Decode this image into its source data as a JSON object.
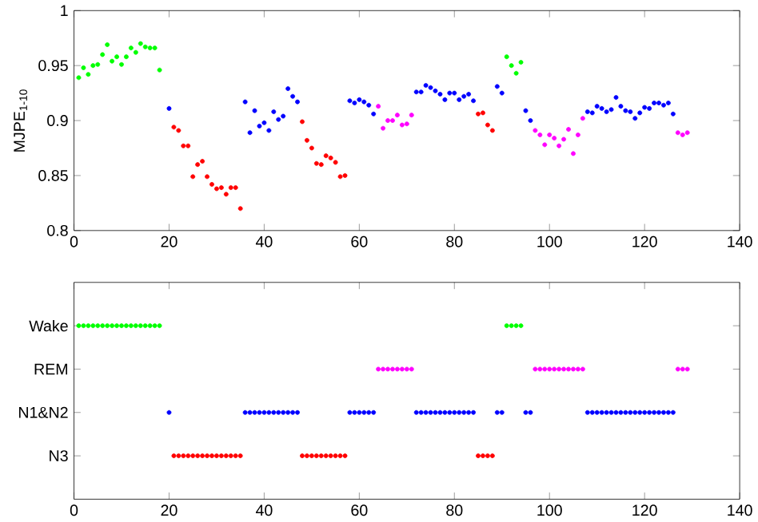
{
  "chart_data": [
    {
      "type": "scatter",
      "ylabel": "MJPE$_{1-10}$",
      "xlim": [
        0,
        140
      ],
      "xticks": [
        0,
        20,
        40,
        60,
        80,
        100,
        120,
        140
      ],
      "ylim": [
        0.8,
        1
      ],
      "yticks": [
        0.8,
        0.85,
        0.9,
        0.95,
        1
      ],
      "marker": "circle",
      "grid": false,
      "series": [
        {
          "color": "#00ff00",
          "x": [
            1,
            2,
            3,
            4,
            5,
            6,
            7,
            8,
            9,
            10,
            11,
            12,
            13,
            14,
            15,
            16,
            17,
            18,
            91,
            92,
            93,
            94
          ],
          "values": [
            0.939,
            0.948,
            0.942,
            0.95,
            0.951,
            0.96,
            0.969,
            0.954,
            0.958,
            0.951,
            0.958,
            0.966,
            0.962,
            0.97,
            0.967,
            0.966,
            0.966,
            0.946,
            0.958,
            0.95,
            0.943,
            0.953
          ]
        },
        {
          "color": "#ff00ff",
          "x": [
            64,
            65,
            66,
            67,
            68,
            69,
            70,
            71,
            97,
            98,
            99,
            100,
            101,
            102,
            103,
            104,
            105,
            106,
            107,
            127,
            128,
            129
          ],
          "values": [
            0.913,
            0.893,
            0.9,
            0.9,
            0.905,
            0.896,
            0.897,
            0.905,
            0.891,
            0.887,
            0.878,
            0.887,
            0.884,
            0.877,
            0.883,
            0.892,
            0.87,
            0.887,
            0.902,
            0.889,
            0.887,
            0.889
          ]
        },
        {
          "color": "#0000ff",
          "x": [
            20,
            36,
            37,
            38,
            39,
            40,
            41,
            42,
            43,
            44,
            45,
            46,
            47,
            58,
            59,
            60,
            61,
            62,
            63,
            72,
            73,
            74,
            75,
            76,
            77,
            78,
            79,
            80,
            81,
            82,
            83,
            84,
            89,
            90,
            95,
            96,
            108,
            109,
            110,
            111,
            112,
            113,
            114,
            115,
            116,
            117,
            118,
            119,
            120,
            121,
            122,
            123,
            124,
            125,
            126
          ],
          "values": [
            0.911,
            0.917,
            0.889,
            0.909,
            0.895,
            0.898,
            0.891,
            0.908,
            0.901,
            0.904,
            0.929,
            0.922,
            0.917,
            0.918,
            0.916,
            0.919,
            0.917,
            0.914,
            0.906,
            0.926,
            0.926,
            0.932,
            0.93,
            0.927,
            0.924,
            0.919,
            0.925,
            0.925,
            0.919,
            0.922,
            0.924,
            0.918,
            0.931,
            0.925,
            0.909,
            0.9,
            0.908,
            0.907,
            0.913,
            0.911,
            0.908,
            0.91,
            0.921,
            0.913,
            0.909,
            0.908,
            0.902,
            0.907,
            0.912,
            0.911,
            0.916,
            0.916,
            0.914,
            0.916,
            0.906
          ]
        },
        {
          "color": "#ff0000",
          "x": [
            21,
            22,
            23,
            24,
            25,
            26,
            27,
            28,
            29,
            30,
            31,
            32,
            33,
            34,
            35,
            48,
            49,
            50,
            51,
            52,
            53,
            54,
            55,
            56,
            57,
            85,
            86,
            87,
            88
          ],
          "values": [
            0.894,
            0.891,
            0.877,
            0.877,
            0.849,
            0.86,
            0.863,
            0.849,
            0.842,
            0.838,
            0.839,
            0.833,
            0.839,
            0.839,
            0.82,
            0.899,
            0.882,
            0.875,
            0.861,
            0.86,
            0.868,
            0.866,
            0.862,
            0.849,
            0.85,
            0.906,
            0.907,
            0.896,
            0.891
          ]
        }
      ]
    },
    {
      "type": "scatter",
      "orientation": "horizontal",
      "categories": [
        "Wake",
        "REM",
        "N1&N2",
        "N3"
      ],
      "xlim": [
        0,
        140
      ],
      "xticks": [
        0,
        20,
        40,
        60,
        80,
        100,
        120,
        140
      ],
      "marker": "circle",
      "grid": false,
      "series": [
        {
          "color": "#00ff00",
          "x": [
            "Wake",
            "Wake",
            "Wake",
            "Wake",
            "Wake",
            "Wake",
            "Wake",
            "Wake",
            "Wake",
            "Wake",
            "Wake",
            "Wake",
            "Wake",
            "Wake",
            "Wake",
            "Wake",
            "Wake",
            "Wake",
            "Wake",
            "Wake",
            "Wake",
            "Wake"
          ],
          "values": [
            1,
            2,
            3,
            4,
            5,
            6,
            7,
            8,
            9,
            10,
            11,
            12,
            13,
            14,
            15,
            16,
            17,
            18,
            91,
            92,
            93,
            94
          ]
        },
        {
          "color": "#ff00ff",
          "x": [
            "REM",
            "REM",
            "REM",
            "REM",
            "REM",
            "REM",
            "REM",
            "REM",
            "REM",
            "REM",
            "REM",
            "REM",
            "REM",
            "REM",
            "REM",
            "REM",
            "REM",
            "REM",
            "REM",
            "REM",
            "REM",
            "REM"
          ],
          "values": [
            64,
            65,
            66,
            67,
            68,
            69,
            70,
            71,
            97,
            98,
            99,
            100,
            101,
            102,
            103,
            104,
            105,
            106,
            107,
            127,
            128,
            129
          ]
        },
        {
          "color": "#0000ff",
          "x": [
            "N1&N2",
            "N1&N2",
            "N1&N2",
            "N1&N2",
            "N1&N2",
            "N1&N2",
            "N1&N2",
            "N1&N2",
            "N1&N2",
            "N1&N2",
            "N1&N2",
            "N1&N2",
            "N1&N2",
            "N1&N2",
            "N1&N2",
            "N1&N2",
            "N1&N2",
            "N1&N2",
            "N1&N2",
            "N1&N2",
            "N1&N2",
            "N1&N2",
            "N1&N2",
            "N1&N2",
            "N1&N2",
            "N1&N2",
            "N1&N2",
            "N1&N2",
            "N1&N2",
            "N1&N2",
            "N1&N2",
            "N1&N2",
            "N1&N2",
            "N1&N2",
            "N1&N2",
            "N1&N2",
            "N1&N2",
            "N1&N2",
            "N1&N2",
            "N1&N2",
            "N1&N2",
            "N1&N2",
            "N1&N2",
            "N1&N2",
            "N1&N2",
            "N1&N2",
            "N1&N2",
            "N1&N2",
            "N1&N2",
            "N1&N2",
            "N1&N2",
            "N1&N2",
            "N1&N2",
            "N1&N2",
            "N1&N2"
          ],
          "values": [
            20,
            36,
            37,
            38,
            39,
            40,
            41,
            42,
            43,
            44,
            45,
            46,
            47,
            58,
            59,
            60,
            61,
            62,
            63,
            72,
            73,
            74,
            75,
            76,
            77,
            78,
            79,
            80,
            81,
            82,
            83,
            84,
            89,
            90,
            95,
            96,
            108,
            109,
            110,
            111,
            112,
            113,
            114,
            115,
            116,
            117,
            118,
            119,
            120,
            121,
            122,
            123,
            124,
            125,
            126
          ]
        },
        {
          "color": "#ff0000",
          "x": [
            "N3",
            "N3",
            "N3",
            "N3",
            "N3",
            "N3",
            "N3",
            "N3",
            "N3",
            "N3",
            "N3",
            "N3",
            "N3",
            "N3",
            "N3",
            "N3",
            "N3",
            "N3",
            "N3",
            "N3",
            "N3",
            "N3",
            "N3",
            "N3",
            "N3",
            "N3",
            "N3",
            "N3",
            "N3"
          ],
          "values": [
            21,
            22,
            23,
            24,
            25,
            26,
            27,
            28,
            29,
            30,
            31,
            32,
            33,
            34,
            35,
            48,
            49,
            50,
            51,
            52,
            53,
            54,
            55,
            56,
            57,
            85,
            86,
            87,
            88
          ]
        }
      ]
    }
  ]
}
